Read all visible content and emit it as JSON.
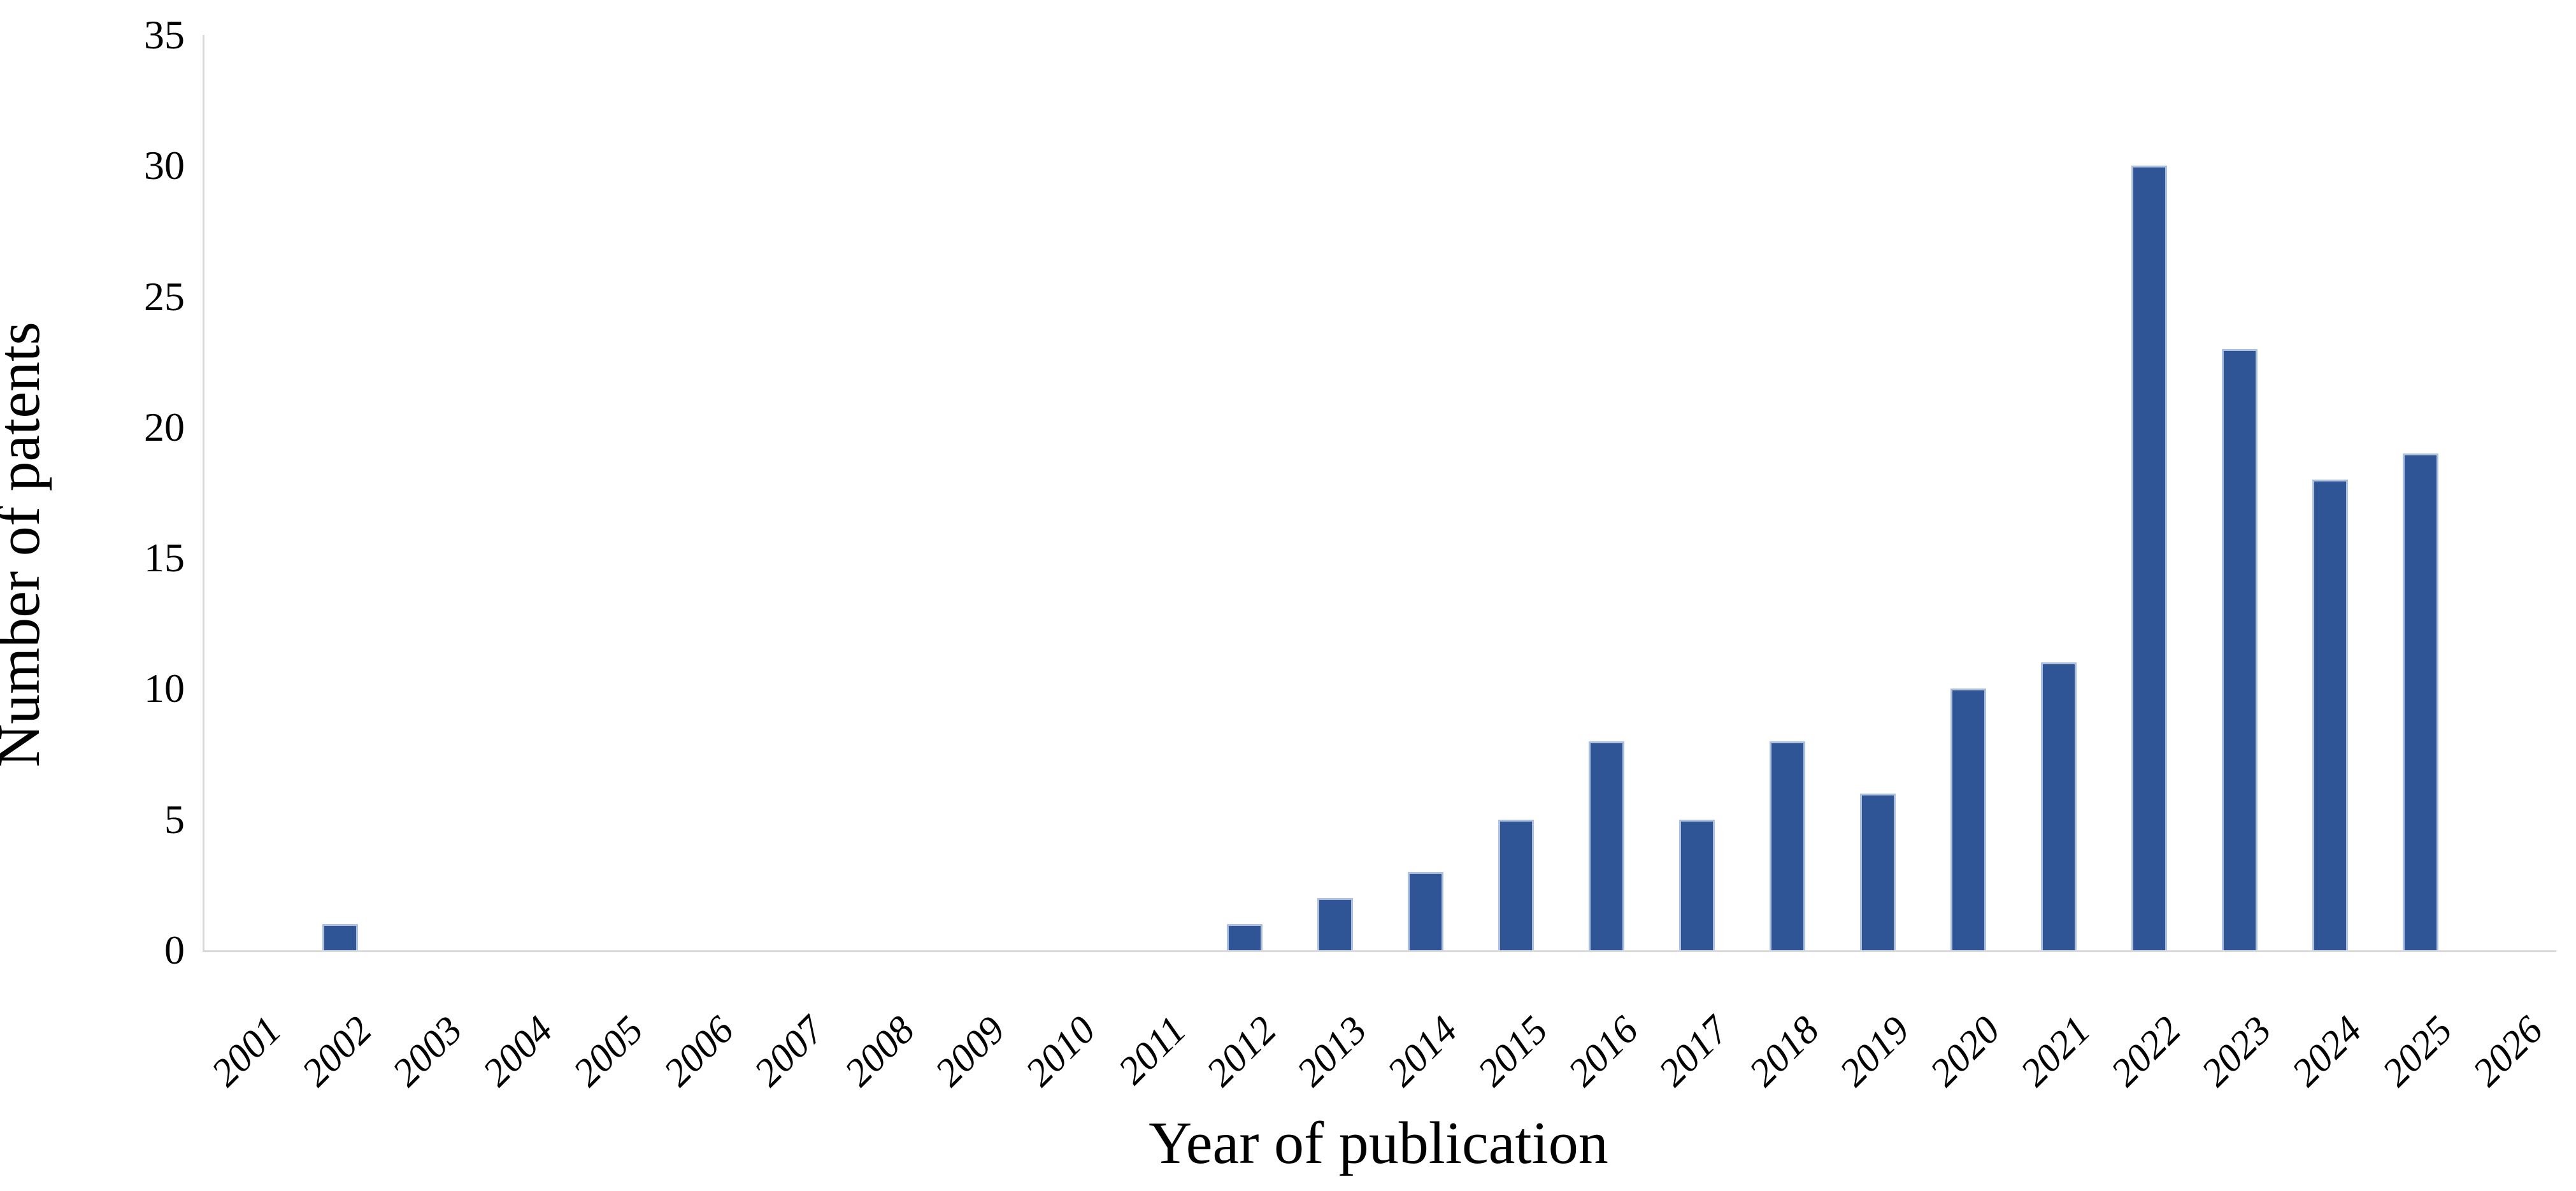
{
  "chart_data": {
    "type": "bar",
    "title": "",
    "xlabel": "Year of publication",
    "ylabel": "Number of patents",
    "categories": [
      "2001",
      "2002",
      "2003",
      "2004",
      "2005",
      "2006",
      "2007",
      "2008",
      "2009",
      "2010",
      "2011",
      "2012",
      "2013",
      "2014",
      "2015",
      "2016",
      "2017",
      "2018",
      "2019",
      "2020",
      "2021",
      "2022",
      "2023",
      "2024",
      "2025",
      "2026"
    ],
    "values": [
      0,
      1,
      0,
      0,
      0,
      0,
      0,
      0,
      0,
      0,
      0,
      1,
      2,
      3,
      5,
      8,
      5,
      8,
      6,
      10,
      11,
      30,
      23,
      18,
      19,
      0
    ],
    "ylim": [
      0,
      35
    ],
    "yticks": [
      0,
      5,
      10,
      15,
      20,
      25,
      30,
      35
    ],
    "grid": false,
    "legend": false,
    "x_tick_rotation_deg": -45,
    "colors": {
      "bar_fill": "#2F5597",
      "bar_edge": "#AEC0DF",
      "axis_line": "#D9D9D9",
      "text": "#000000"
    }
  }
}
